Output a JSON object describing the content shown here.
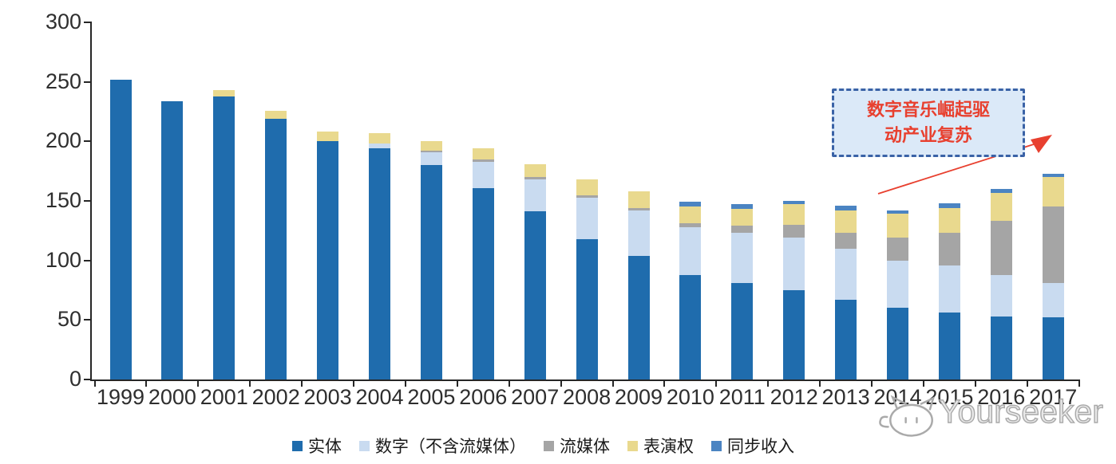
{
  "chart_data": {
    "type": "bar",
    "stacked": true,
    "title": "",
    "xlabel": "",
    "ylabel": "",
    "ylim": [
      0,
      300
    ],
    "yticks": [
      0,
      50,
      100,
      150,
      200,
      250,
      300
    ],
    "grid": false,
    "legend_position": "bottom",
    "categories": [
      "1999",
      "2000",
      "2001",
      "2002",
      "2003",
      "2004",
      "2005",
      "2006",
      "2007",
      "2008",
      "2009",
      "2010",
      "2011",
      "2012",
      "2013",
      "2014",
      "2015",
      "2016",
      "2017"
    ],
    "series": [
      {
        "key": "physical",
        "name": "实体",
        "color": "#1f6cad",
        "values": [
          252,
          234,
          238,
          219,
          200,
          194,
          180,
          161,
          141,
          118,
          104,
          88,
          81,
          75,
          67,
          60,
          56,
          53,
          52
        ]
      },
      {
        "key": "digital",
        "name": "数字（不含流媒体）",
        "color": "#c9dbf0",
        "values": [
          0,
          0,
          0,
          0,
          0,
          4,
          11,
          22,
          27,
          35,
          38,
          40,
          42,
          44,
          43,
          40,
          40,
          35,
          29
        ]
      },
      {
        "key": "streaming",
        "name": "流媒体",
        "color": "#a5a5a5",
        "values": [
          0,
          0,
          0,
          0,
          0,
          0,
          1,
          2,
          2,
          2,
          2,
          3,
          6,
          11,
          13,
          19,
          27,
          45,
          64
        ]
      },
      {
        "key": "performance",
        "name": "表演权",
        "color": "#e9d98e",
        "values": [
          0,
          0,
          5,
          7,
          8,
          9,
          8,
          9,
          11,
          13,
          14,
          14,
          14,
          17,
          19,
          20,
          21,
          24,
          25
        ]
      },
      {
        "key": "sync",
        "name": "同步收入",
        "color": "#4b84c2",
        "values": [
          0,
          0,
          0,
          0,
          0,
          0,
          0,
          0,
          0,
          0,
          0,
          4,
          4,
          3,
          4,
          3,
          4,
          3,
          3
        ]
      }
    ]
  },
  "annotation": {
    "line1": "数字音乐崛起驱",
    "line2": "动产业复苏",
    "text_color": "#e8402f",
    "box_fill": "#dbe9f8",
    "box_border": "#3a62a6"
  },
  "watermark": {
    "text": "Yourseeker"
  }
}
